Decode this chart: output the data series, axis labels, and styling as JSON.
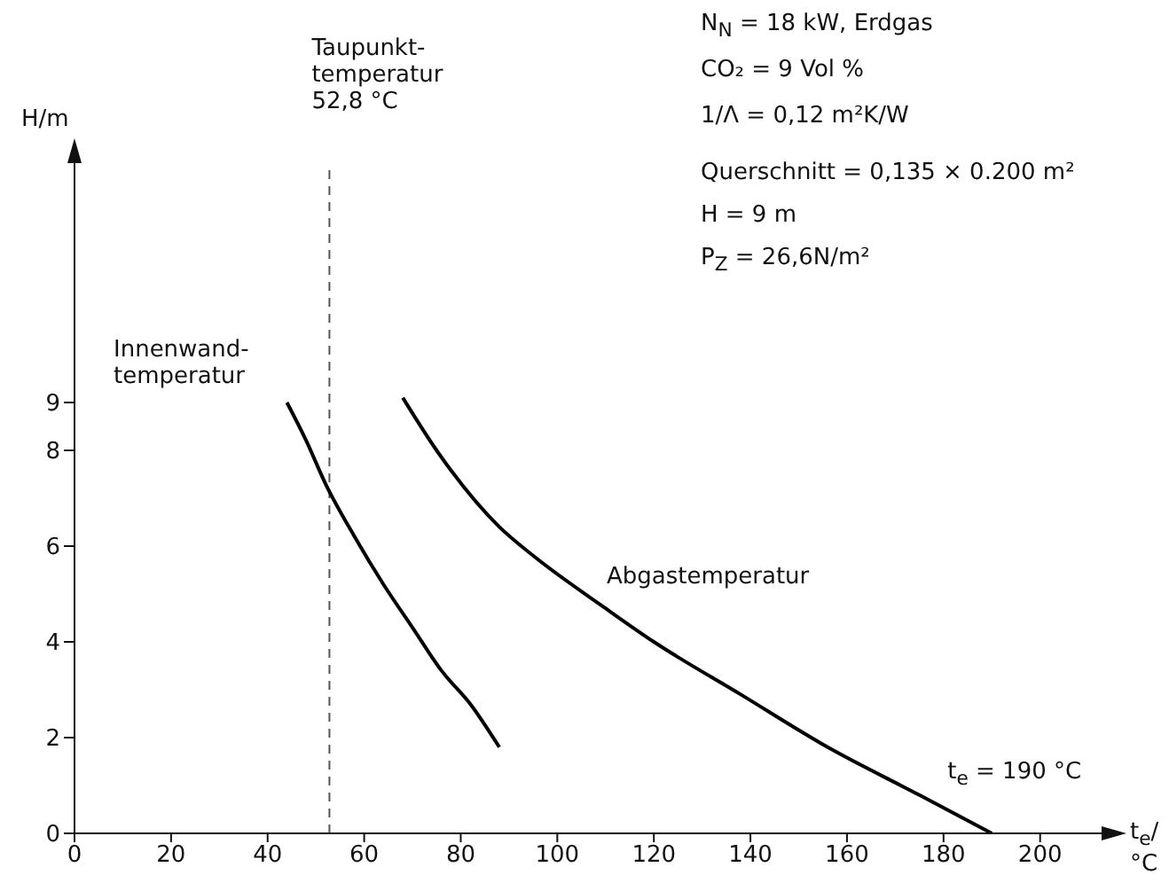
{
  "chart_data": {
    "type": "line",
    "xlabel": "t$_{e}$/°C",
    "ylabel": "H/m",
    "xlim": [
      0,
      212
    ],
    "xticks": [
      0,
      20,
      40,
      60,
      80,
      100,
      120,
      140,
      160,
      180,
      200
    ],
    "ylim": [
      0,
      14
    ],
    "yticks": [
      0,
      2,
      4,
      6,
      8,
      9
    ],
    "series": [
      {
        "name": "Innenwand-temperatur",
        "color": "#000000",
        "x": [
          44,
          48,
          52,
          58,
          64,
          70,
          76,
          82,
          88
        ],
        "values": [
          9,
          8.2,
          7.3,
          6.2,
          5.2,
          4.3,
          3.4,
          2.7,
          1.8
        ]
      },
      {
        "name": "Abgastemperatur",
        "color": "#000000",
        "x": [
          68,
          75,
          88,
          95,
          110,
          120,
          138,
          156,
          175,
          190
        ],
        "values": [
          9.1,
          8.0,
          6.4,
          5.8,
          4.7,
          4.0,
          2.9,
          1.8,
          0.8,
          0
        ]
      }
    ],
    "ref_lines": [
      {
        "axis": "x",
        "value": 52.8,
        "label": "Taupunkt-temperatur 52,8 °C",
        "color": "#555555",
        "line_style": "dashed"
      }
    ],
    "annotations": [
      "N$_{N}$ = 18 kW, Erdgas",
      "CO₂ = 9 Vol %",
      "1/Λ = 0,12 m²K/W",
      "Querschnitt = 0,135 × 0.200 m²",
      "H = 9 m",
      "P$_{Z}$ = 26,6N/m²",
      {
        "text": "t$_{e}$ = 190 °C",
        "x": 190,
        "y": 0
      }
    ],
    "grid": false,
    "legend": false,
    "marker": "none",
    "line_style": "solid"
  }
}
